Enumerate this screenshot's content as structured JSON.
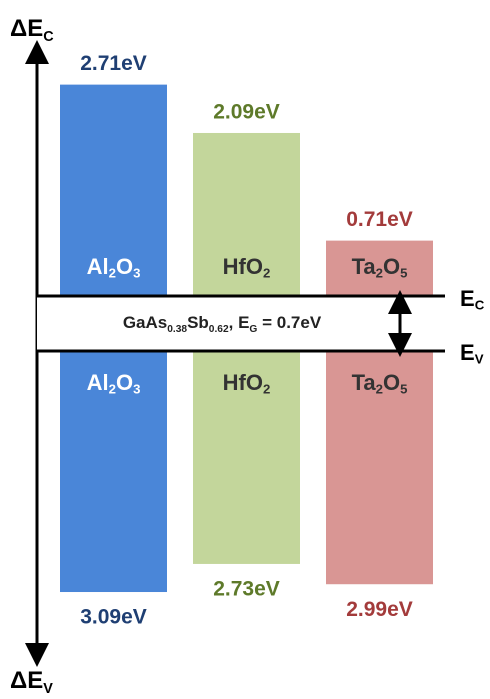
{
  "axis": {
    "top_label": [
      "ΔE",
      "C"
    ],
    "bottom_label": [
      "ΔE",
      "V"
    ]
  },
  "levels": {
    "conduction": [
      "E",
      "C"
    ],
    "valence": [
      "E",
      "V"
    ]
  },
  "semiconductor": [
    "GaAs",
    "0.38",
    "Sb",
    "0.62",
    ", E",
    "G",
    " = 0.7eV"
  ],
  "materials": [
    {
      "name": [
        "Al",
        "2",
        "O",
        "3"
      ],
      "conduction_offset": 2.71,
      "conduction_label": "2.71eV",
      "valence_offset": 3.09,
      "valence_label": "3.09eV",
      "color": "#4a86d8",
      "label_color": "#1f3f73",
      "name_color": "#ffffff"
    },
    {
      "name": [
        "HfO",
        "2"
      ],
      "conduction_offset": 2.09,
      "conduction_label": "2.09eV",
      "valence_offset": 2.73,
      "valence_label": "2.73eV",
      "color": "#c3d69b",
      "label_color": "#5e7a2a",
      "name_color": "#333333"
    },
    {
      "name": [
        "Ta",
        "2",
        "O",
        "5"
      ],
      "conduction_offset": 0.71,
      "conduction_label": "0.71eV",
      "valence_offset": 2.99,
      "valence_label": "2.99eV",
      "color": "#d99694",
      "label_color": "#a33b3b",
      "name_color": "#333333"
    }
  ]
}
